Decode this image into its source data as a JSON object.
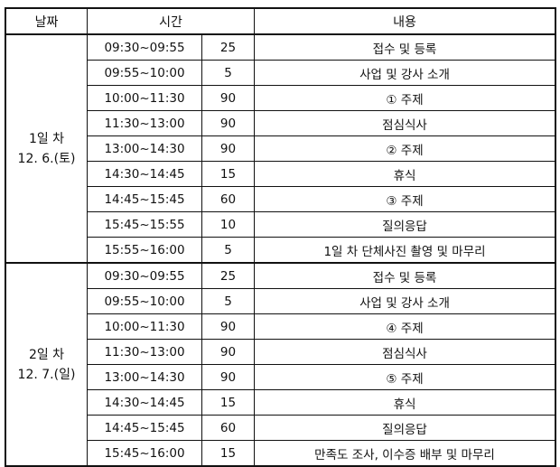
{
  "headers": {
    "date": "날짜",
    "time": "시간",
    "content": "내용"
  },
  "days": [
    {
      "label": "1일 차",
      "date": "12. 6.(토)",
      "rows": [
        {
          "time": "09:30~09:55",
          "minutes": "25",
          "content": "접수 및 등록"
        },
        {
          "time": "09:55~10:00",
          "minutes": "5",
          "content": "사업 및 강사 소개"
        },
        {
          "time": "10:00~11:30",
          "minutes": "90",
          "content": "① 주제"
        },
        {
          "time": "11:30~13:00",
          "minutes": "90",
          "content": "점심식사"
        },
        {
          "time": "13:00~14:30",
          "minutes": "90",
          "content": "② 주제"
        },
        {
          "time": "14:30~14:45",
          "minutes": "15",
          "content": "휴식"
        },
        {
          "time": "14:45~15:45",
          "minutes": "60",
          "content": "③ 주제"
        },
        {
          "time": "15:45~15:55",
          "minutes": "10",
          "content": "질의응답"
        },
        {
          "time": "15:55~16:00",
          "minutes": "5",
          "content": "1일 차 단체사진 촬영 및 마무리"
        }
      ]
    },
    {
      "label": "2일 차",
      "date": "12. 7.(일)",
      "rows": [
        {
          "time": "09:30~09:55",
          "minutes": "25",
          "content": "접수 및 등록"
        },
        {
          "time": "09:55~10:00",
          "minutes": "5",
          "content": "사업 및 강사 소개"
        },
        {
          "time": "10:00~11:30",
          "minutes": "90",
          "content": "④ 주제"
        },
        {
          "time": "11:30~13:00",
          "minutes": "90",
          "content": "점심식사"
        },
        {
          "time": "13:00~14:30",
          "minutes": "90",
          "content": "⑤ 주제"
        },
        {
          "time": "14:30~14:45",
          "minutes": "15",
          "content": "휴식"
        },
        {
          "time": "14:45~15:45",
          "minutes": "60",
          "content": "질의응답"
        },
        {
          "time": "15:45~16:00",
          "minutes": "15",
          "content": "만족도 조사, 이수증 배부 및 마무리"
        }
      ]
    }
  ]
}
